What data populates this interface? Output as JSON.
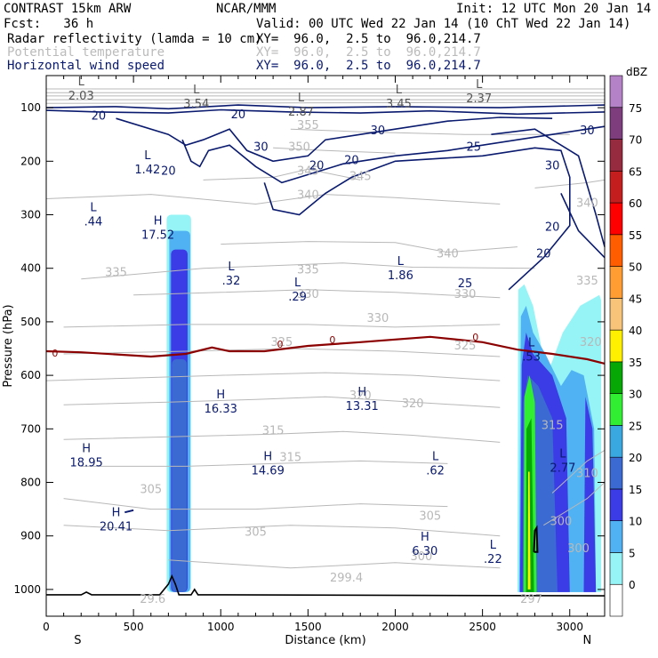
{
  "header": {
    "line1_left": "CONTRAST 15km ARW",
    "line1_mid": "NCAR/MMM",
    "line1_right": "Init: 12 UTC Mon 20 Jan 14",
    "line2_left": "Fcst:   36 h",
    "line2_right": "Valid: 00 UTC Wed 22 Jan 14 (10 ChT Wed 22 Jan 14)",
    "fields": [
      {
        "name": "Radar reflectivity (lamda = 10 cm)",
        "xy": "XY=  96.0,  2.5 to  96.0,214.7",
        "color": "#000000"
      },
      {
        "name": "Potential temperature",
        "xy": "XY=  96.0,  2.5 to  96.0,214.7",
        "color": "#bbbbbb"
      },
      {
        "name": "Horizontal wind speed",
        "xy": "XY=  96.0,  2.5 to  96.0,214.7",
        "color": "#0a1a6e"
      }
    ]
  },
  "chart_data": {
    "type": "cross-section",
    "xlabel": "Distance (km)",
    "ylabel": "Pressure (hPa)",
    "x_ticks": [
      0,
      500,
      1000,
      1500,
      2000,
      2500,
      3000
    ],
    "y_ticks": [
      100,
      200,
      300,
      400,
      500,
      600,
      700,
      800,
      900,
      1000
    ],
    "xlim": [
      0,
      3200
    ],
    "ylim": [
      1050,
      40
    ],
    "end_labels": {
      "left": "S",
      "right": "N"
    },
    "colorbar": {
      "title": "dBZ",
      "levels": [
        0,
        5,
        10,
        15,
        20,
        25,
        30,
        35,
        40,
        45,
        50,
        55,
        60,
        65,
        70,
        75
      ],
      "colors": [
        "#ffffff",
        "#96f4f6",
        "#50b2f2",
        "#3c3ce6",
        "#3a6ad2",
        "#3aa8e0",
        "#32ee32",
        "#06a806",
        "#fff000",
        "#f7c47a",
        "#ff9d33",
        "#ff5d00",
        "#ff0000",
        "#c41e1e",
        "#962a3e",
        "#7e3e7e",
        "#b482c6"
      ]
    },
    "reflectivity_columns": [
      {
        "x_km": [
          690,
          830
        ],
        "p_top": 300,
        "p_bottom": 1005,
        "max_dbz": 20
      },
      {
        "x_km": [
          2700,
          3180
        ],
        "p_top": 430,
        "p_bottom": 1005,
        "max_dbz": 40
      }
    ],
    "freezing_level_label": "0",
    "freezing_level_color": "#8b0000",
    "theta_labels": [
      "355",
      "350",
      "345",
      "345",
      "340",
      "340",
      "340",
      "335",
      "335",
      "335",
      "330",
      "330",
      "330",
      "325",
      "325",
      "320",
      "320",
      "320",
      "315",
      "315",
      "315",
      "310",
      "305",
      "305",
      "305",
      "300",
      "300",
      "300",
      "299.4",
      "297",
      "29.6"
    ],
    "wind_labels": [
      "20",
      "20",
      "30",
      "30",
      "20",
      "20",
      "20",
      "25",
      "30",
      "30",
      "25",
      "20",
      "20"
    ],
    "extrema": [
      {
        "type": "L",
        "value": "2.03"
      },
      {
        "type": "L",
        "value": "3.54"
      },
      {
        "type": "L",
        "value": "2.87"
      },
      {
        "type": "L",
        "value": "3.45"
      },
      {
        "type": "L",
        "value": "2.37"
      },
      {
        "type": "L",
        "value": "1.42"
      },
      {
        "type": "L",
        "value": ".44"
      },
      {
        "type": "H",
        "value": "17.52"
      },
      {
        "type": "L",
        "value": ".32"
      },
      {
        "type": "L",
        "value": ".29"
      },
      {
        "type": "L",
        "value": "1.86"
      },
      {
        "type": "L",
        "value": ".53"
      },
      {
        "type": "H",
        "value": "18.95"
      },
      {
        "type": "H",
        "value": "16.33"
      },
      {
        "type": "H",
        "value": "13.31"
      },
      {
        "type": "H",
        "value": "14.69"
      },
      {
        "type": "L",
        "value": ".62"
      },
      {
        "type": "L",
        "value": "2.77"
      },
      {
        "type": "H",
        "value": "20.41"
      },
      {
        "type": "H",
        "value": "6.30"
      },
      {
        "type": "L",
        "value": ".22"
      }
    ]
  }
}
